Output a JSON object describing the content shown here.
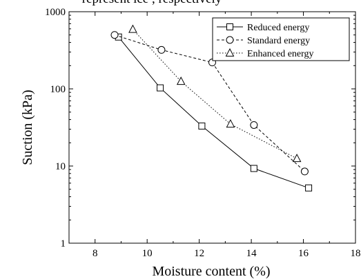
{
  "top_caption": "represent ice  , respectively",
  "chart_data": {
    "type": "line",
    "title": "",
    "xlabel": "Moisture content (%)",
    "ylabel": "Suction (kPa)",
    "xlim": [
      7,
      18
    ],
    "ylim": [
      1,
      1000
    ],
    "y_scale": "log",
    "x_ticks": [
      8,
      10,
      12,
      14,
      16,
      18
    ],
    "y_ticks": [
      1,
      10,
      100,
      1000
    ],
    "x_tick_labels": [
      "8",
      "10",
      "12",
      "14",
      "16",
      "18"
    ],
    "y_tick_labels": [
      "1",
      "10",
      "100",
      "1000"
    ],
    "grid": false,
    "legend_position": "top-right",
    "series": [
      {
        "name": "Reduced energy",
        "marker": "square",
        "line_style": "solid",
        "x": [
          8.9,
          10.5,
          12.1,
          14.1,
          16.2
        ],
        "y": [
          470,
          103,
          33,
          9.3,
          5.2
        ]
      },
      {
        "name": "Standard energy",
        "marker": "circle",
        "line_style": "dashed",
        "x": [
          8.75,
          10.55,
          12.5,
          14.1,
          16.05
        ],
        "y": [
          500,
          320,
          220,
          34,
          8.5
        ]
      },
      {
        "name": "Enhanced energy",
        "marker": "triangle",
        "line_style": "dotted",
        "x": [
          9.45,
          11.3,
          13.2,
          15.75
        ],
        "y": [
          590,
          125,
          35,
          12.5
        ]
      }
    ]
  }
}
